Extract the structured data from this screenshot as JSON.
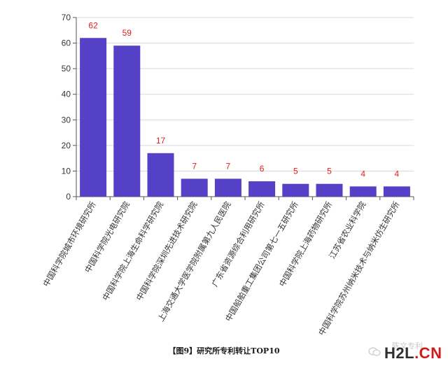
{
  "chart_data": {
    "type": "bar",
    "title": "",
    "xlabel": "",
    "ylabel": "",
    "ylim": [
      0,
      70
    ],
    "yticks": [
      0,
      10,
      20,
      30,
      40,
      50,
      60,
      70
    ],
    "grid": "horizontal",
    "bar_color": "#5540c8",
    "label_color": "#e0201b",
    "categories": [
      "中国科学院城市环境研究所",
      "中国科学院光电研究院",
      "中国科学院上海生命科学研究院",
      "中国科学院深圳先进技术研究院",
      "上海交通大学医学院附属第九人民医院",
      "广东省资源综合利用研究所",
      "中国船舶重工集团公司第七一五研究所",
      "中国科学院上海药物研究所",
      "江苏省农业科学院",
      "中国科学院苏州纳米技术与纳米仿生研究所"
    ],
    "values": [
      62,
      59,
      17,
      7,
      7,
      6,
      5,
      5,
      4,
      4
    ]
  },
  "caption": "【图9】研究所专利转让TOP10",
  "watermark": {
    "text_zh": "陈文专利",
    "logo_main": "H2L",
    "logo_suffix": ".CN"
  }
}
